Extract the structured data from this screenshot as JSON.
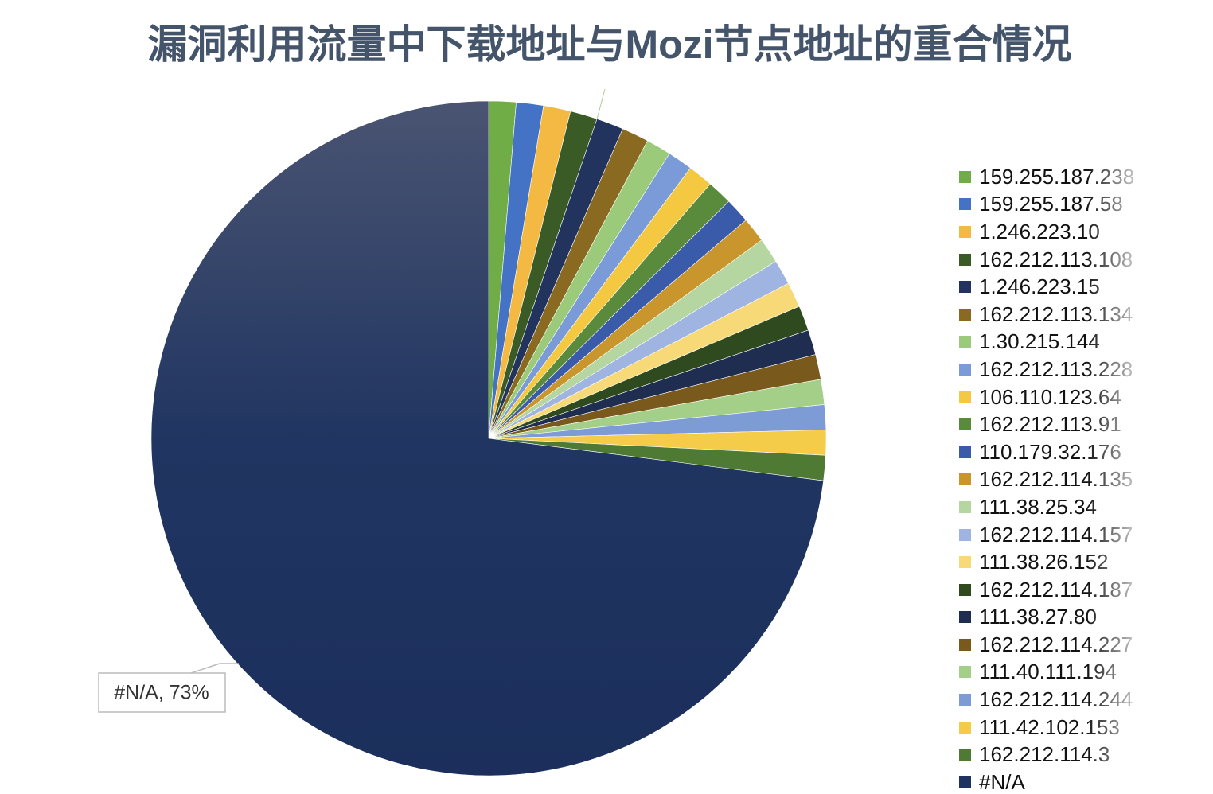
{
  "chart_data": {
    "type": "pie",
    "title": "漏洞利用流量中下载地址与Mozi节点地址的重合情况",
    "categories": [
      "159.255.187.238",
      "159.255.187.58",
      "1.246.223.10",
      "162.212.113.108",
      "1.246.223.15",
      "162.212.113.134",
      "1.30.215.144",
      "162.212.113.228",
      "106.110.123.64",
      "162.212.113.91",
      "110.179.32.176",
      "162.212.114.135",
      "111.38.25.34",
      "162.212.114.157",
      "111.38.26.152",
      "162.212.114.187",
      "111.38.27.80",
      "162.212.114.227",
      "111.40.111.194",
      "162.212.114.244",
      "111.42.102.153",
      "162.212.114.3",
      "#N/A"
    ],
    "values": [
      1.3,
      1.3,
      1.3,
      1.3,
      1.3,
      1.3,
      1.2,
      1.2,
      1.2,
      1.2,
      1.2,
      1.2,
      1.2,
      1.2,
      1.2,
      1.2,
      1.2,
      1.2,
      1.2,
      1.2,
      1.2,
      1.2,
      73
    ],
    "value_labels": [
      null,
      null,
      null,
      null,
      null,
      null,
      null,
      null,
      null,
      null,
      null,
      null,
      null,
      null,
      null,
      null,
      null,
      null,
      null,
      null,
      null,
      null,
      "#N/A, 73%"
    ],
    "colors": [
      "#70ad47",
      "#4472c4",
      "#f4b942",
      "#3a5a26",
      "#22345e",
      "#8a6a20",
      "#9bcb7a",
      "#7a9ad8",
      "#f5c842",
      "#5a8a3c",
      "#3a5aaa",
      "#c9962e",
      "#b5d6a0",
      "#9fb4e0",
      "#f7d978",
      "#2f4a1f",
      "#1f2d50",
      "#7a5a1c",
      "#a3cf88",
      "#7d9cd6",
      "#f5cb4a",
      "#4e7a34",
      "#1f3360"
    ]
  }
}
